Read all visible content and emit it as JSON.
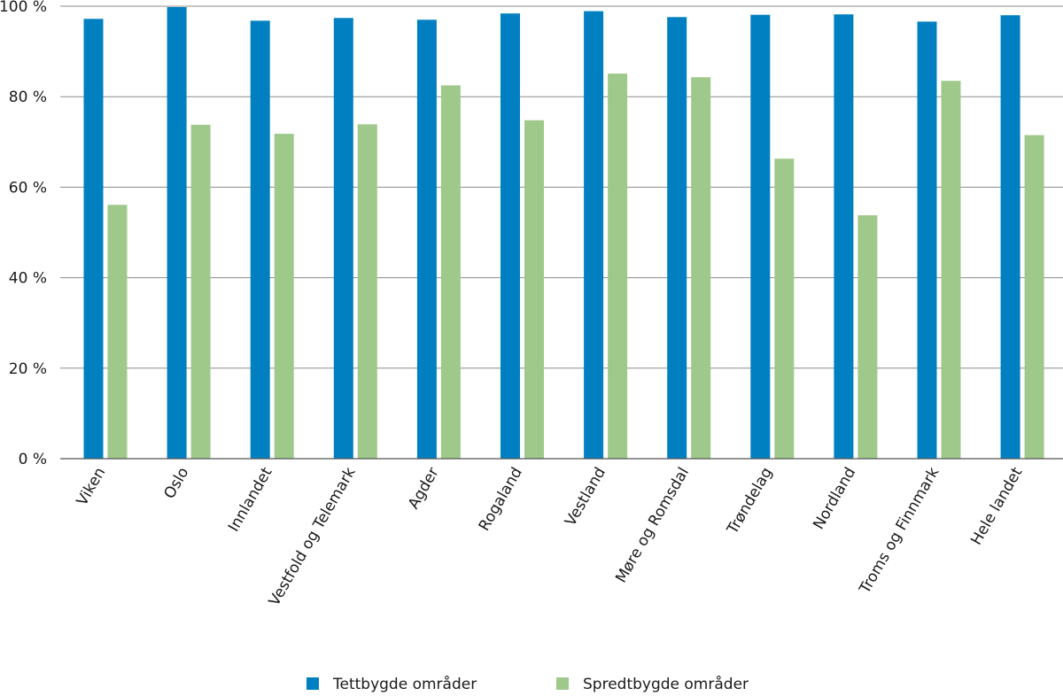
{
  "chart_data": {
    "type": "bar",
    "title": "",
    "xlabel": "",
    "ylabel": "",
    "ylim": [
      0,
      100
    ],
    "yticks": [
      0,
      20,
      40,
      60,
      80,
      100
    ],
    "ytick_labels": [
      "0 %",
      "20 %",
      "40 %",
      "60 %",
      "80 %",
      "100 %"
    ],
    "grid": true,
    "legend_position": "bottom",
    "categories": [
      "Viken",
      "Oslo",
      "Innlandet",
      "Vestfold og Telemark",
      "Agder",
      "Rogaland",
      "Vestland",
      "Møre og Romsdal",
      "Trøndelag",
      "Nordland",
      "Troms og Finnmark",
      "Hele landet"
    ],
    "series": [
      {
        "name": "Tettbygde områder",
        "color": "#0080c0",
        "values": [
          97.2,
          99.8,
          96.8,
          97.4,
          97.0,
          98.4,
          98.9,
          97.6,
          98.1,
          98.2,
          96.6,
          98.0
        ]
      },
      {
        "name": "Spredtbygde områder",
        "color": "#9fc98a",
        "values": [
          56.1,
          73.8,
          71.8,
          73.9,
          82.5,
          74.8,
          85.1,
          84.3,
          66.3,
          53.8,
          83.5,
          71.5
        ]
      }
    ]
  }
}
